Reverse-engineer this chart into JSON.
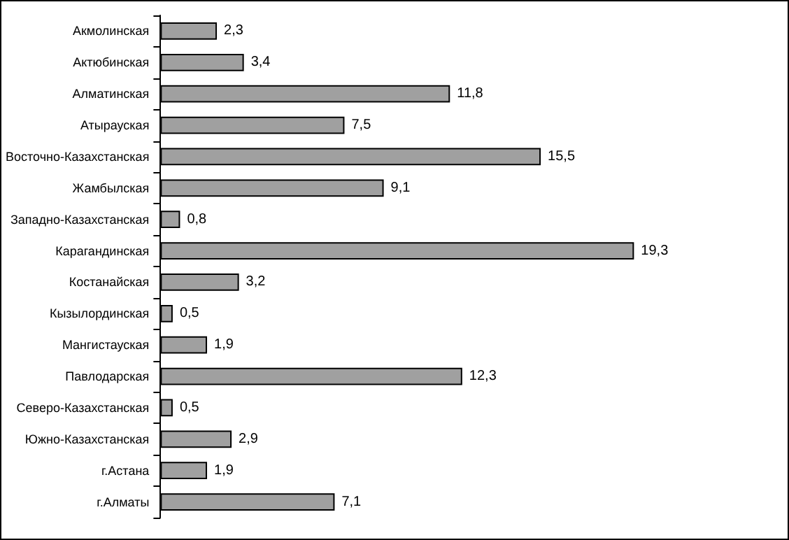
{
  "chart_data": {
    "type": "bar",
    "orientation": "horizontal",
    "categories": [
      "Акмолинская",
      "Актюбинская",
      "Алматинская",
      "Атырауская",
      "Восточно-Казахстанская",
      "Жамбылская",
      "Западно-Казахстанская",
      "Карагандинская",
      "Костанайская",
      "Кызылординская",
      "Мангистауская",
      "Павлодарская",
      "Северо-Казахстанская",
      "Южно-Казахстанская",
      "г.Астана",
      "г.Алматы"
    ],
    "values": [
      2.3,
      3.4,
      11.8,
      7.5,
      15.5,
      9.1,
      0.8,
      19.3,
      3.2,
      0.5,
      1.9,
      12.3,
      0.5,
      2.9,
      1.9,
      7.1
    ],
    "value_labels": [
      "2,3",
      "3,4",
      "11,8",
      "7,5",
      "15,5",
      "9,1",
      "0,8",
      "19,3",
      "3,2",
      "0,5",
      "1,9",
      "12,3",
      "0,5",
      "2,9",
      "1,9",
      "7,1"
    ],
    "color": "#a0a0a0"
  }
}
